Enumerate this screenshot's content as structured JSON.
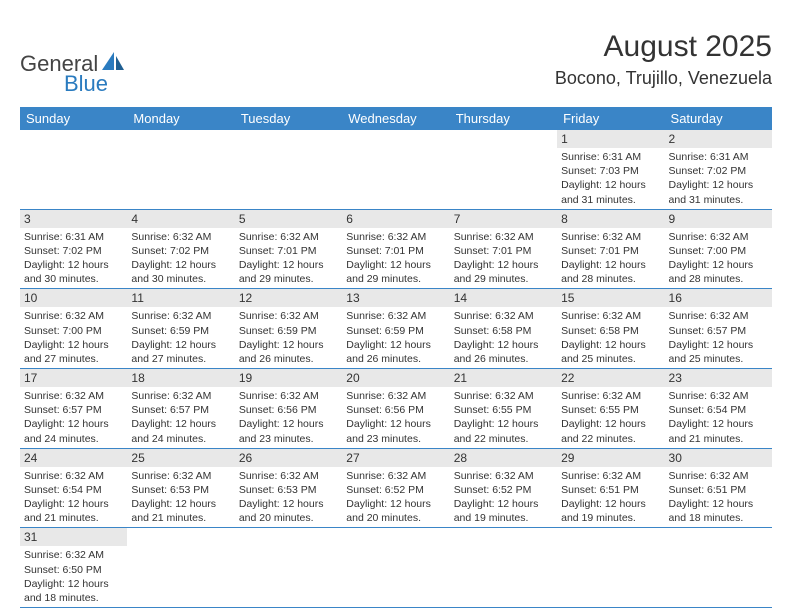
{
  "logo": {
    "part1": "General",
    "part2": "Blue"
  },
  "title": "August 2025",
  "location": "Bocono, Trujillo, Venezuela",
  "colors": {
    "header_bg": "#3a85c7",
    "header_fg": "#ffffff",
    "daynum_bg": "#e8e8e8",
    "cell_border": "#3a85c7",
    "logo_blue": "#2a7bbf"
  },
  "weekdays": [
    "Sunday",
    "Monday",
    "Tuesday",
    "Wednesday",
    "Thursday",
    "Friday",
    "Saturday"
  ],
  "weeks": [
    [
      null,
      null,
      null,
      null,
      null,
      {
        "n": "1",
        "sr": "6:31 AM",
        "ss": "7:03 PM",
        "dl": "12 hours and 31 minutes."
      },
      {
        "n": "2",
        "sr": "6:31 AM",
        "ss": "7:02 PM",
        "dl": "12 hours and 31 minutes."
      }
    ],
    [
      {
        "n": "3",
        "sr": "6:31 AM",
        "ss": "7:02 PM",
        "dl": "12 hours and 30 minutes."
      },
      {
        "n": "4",
        "sr": "6:32 AM",
        "ss": "7:02 PM",
        "dl": "12 hours and 30 minutes."
      },
      {
        "n": "5",
        "sr": "6:32 AM",
        "ss": "7:01 PM",
        "dl": "12 hours and 29 minutes."
      },
      {
        "n": "6",
        "sr": "6:32 AM",
        "ss": "7:01 PM",
        "dl": "12 hours and 29 minutes."
      },
      {
        "n": "7",
        "sr": "6:32 AM",
        "ss": "7:01 PM",
        "dl": "12 hours and 29 minutes."
      },
      {
        "n": "8",
        "sr": "6:32 AM",
        "ss": "7:01 PM",
        "dl": "12 hours and 28 minutes."
      },
      {
        "n": "9",
        "sr": "6:32 AM",
        "ss": "7:00 PM",
        "dl": "12 hours and 28 minutes."
      }
    ],
    [
      {
        "n": "10",
        "sr": "6:32 AM",
        "ss": "7:00 PM",
        "dl": "12 hours and 27 minutes."
      },
      {
        "n": "11",
        "sr": "6:32 AM",
        "ss": "6:59 PM",
        "dl": "12 hours and 27 minutes."
      },
      {
        "n": "12",
        "sr": "6:32 AM",
        "ss": "6:59 PM",
        "dl": "12 hours and 26 minutes."
      },
      {
        "n": "13",
        "sr": "6:32 AM",
        "ss": "6:59 PM",
        "dl": "12 hours and 26 minutes."
      },
      {
        "n": "14",
        "sr": "6:32 AM",
        "ss": "6:58 PM",
        "dl": "12 hours and 26 minutes."
      },
      {
        "n": "15",
        "sr": "6:32 AM",
        "ss": "6:58 PM",
        "dl": "12 hours and 25 minutes."
      },
      {
        "n": "16",
        "sr": "6:32 AM",
        "ss": "6:57 PM",
        "dl": "12 hours and 25 minutes."
      }
    ],
    [
      {
        "n": "17",
        "sr": "6:32 AM",
        "ss": "6:57 PM",
        "dl": "12 hours and 24 minutes."
      },
      {
        "n": "18",
        "sr": "6:32 AM",
        "ss": "6:57 PM",
        "dl": "12 hours and 24 minutes."
      },
      {
        "n": "19",
        "sr": "6:32 AM",
        "ss": "6:56 PM",
        "dl": "12 hours and 23 minutes."
      },
      {
        "n": "20",
        "sr": "6:32 AM",
        "ss": "6:56 PM",
        "dl": "12 hours and 23 minutes."
      },
      {
        "n": "21",
        "sr": "6:32 AM",
        "ss": "6:55 PM",
        "dl": "12 hours and 22 minutes."
      },
      {
        "n": "22",
        "sr": "6:32 AM",
        "ss": "6:55 PM",
        "dl": "12 hours and 22 minutes."
      },
      {
        "n": "23",
        "sr": "6:32 AM",
        "ss": "6:54 PM",
        "dl": "12 hours and 21 minutes."
      }
    ],
    [
      {
        "n": "24",
        "sr": "6:32 AM",
        "ss": "6:54 PM",
        "dl": "12 hours and 21 minutes."
      },
      {
        "n": "25",
        "sr": "6:32 AM",
        "ss": "6:53 PM",
        "dl": "12 hours and 21 minutes."
      },
      {
        "n": "26",
        "sr": "6:32 AM",
        "ss": "6:53 PM",
        "dl": "12 hours and 20 minutes."
      },
      {
        "n": "27",
        "sr": "6:32 AM",
        "ss": "6:52 PM",
        "dl": "12 hours and 20 minutes."
      },
      {
        "n": "28",
        "sr": "6:32 AM",
        "ss": "6:52 PM",
        "dl": "12 hours and 19 minutes."
      },
      {
        "n": "29",
        "sr": "6:32 AM",
        "ss": "6:51 PM",
        "dl": "12 hours and 19 minutes."
      },
      {
        "n": "30",
        "sr": "6:32 AM",
        "ss": "6:51 PM",
        "dl": "12 hours and 18 minutes."
      }
    ],
    [
      {
        "n": "31",
        "sr": "6:32 AM",
        "ss": "6:50 PM",
        "dl": "12 hours and 18 minutes."
      },
      null,
      null,
      null,
      null,
      null,
      null
    ]
  ],
  "labels": {
    "sunrise": "Sunrise:",
    "sunset": "Sunset:",
    "daylight": "Daylight:"
  }
}
